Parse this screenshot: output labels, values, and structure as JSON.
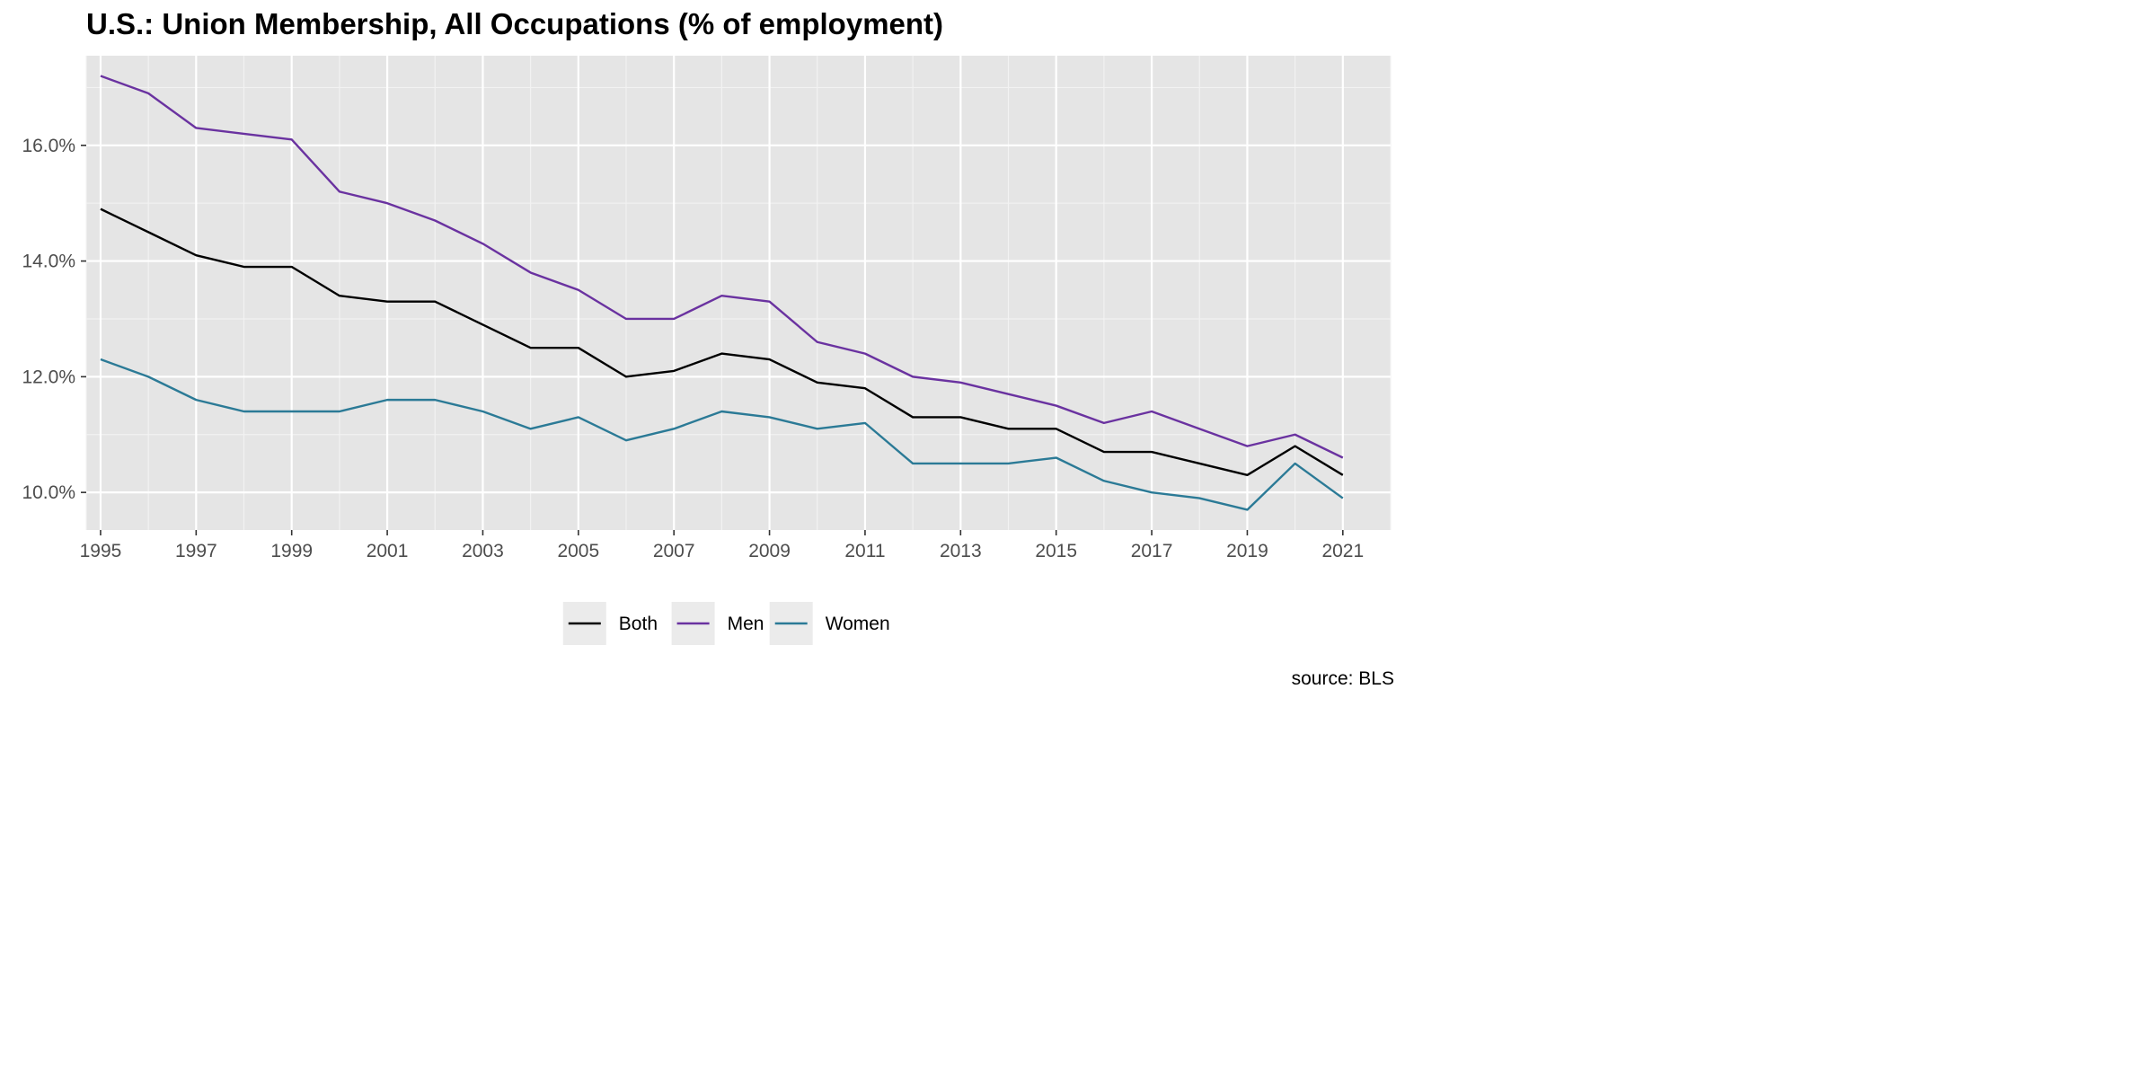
{
  "chart_data": {
    "type": "line",
    "title": "U.S.: Union Membership, All Occupations (% of employment)",
    "caption": "source: BLS",
    "xlabel": "",
    "ylabel": "",
    "x": [
      1995,
      1996,
      1997,
      1998,
      1999,
      2000,
      2001,
      2002,
      2003,
      2004,
      2005,
      2006,
      2007,
      2008,
      2009,
      2010,
      2011,
      2012,
      2013,
      2014,
      2015,
      2016,
      2017,
      2018,
      2019,
      2020,
      2021
    ],
    "x_ticks": [
      "1995",
      "1997",
      "1999",
      "2001",
      "2003",
      "2005",
      "2007",
      "2009",
      "2011",
      "2013",
      "2015",
      "2017",
      "2019",
      "2021"
    ],
    "y_ticks": [
      "10.0%",
      "12.0%",
      "14.0%",
      "16.0%"
    ],
    "y_tick_values": [
      10,
      12,
      14,
      16
    ],
    "xlim": [
      1994.7,
      2022.0
    ],
    "ylim": [
      9.35,
      17.55
    ],
    "grid": true,
    "legend_position": "bottom",
    "series": [
      {
        "name": "Both",
        "color": "#000000",
        "values": [
          14.9,
          14.5,
          14.1,
          13.9,
          13.9,
          13.4,
          13.3,
          13.3,
          12.9,
          12.5,
          12.5,
          12.0,
          12.1,
          12.4,
          12.3,
          11.9,
          11.8,
          11.3,
          11.3,
          11.1,
          11.1,
          10.7,
          10.7,
          10.5,
          10.3,
          10.8,
          10.3
        ]
      },
      {
        "name": "Men",
        "color": "#6a32a0",
        "values": [
          17.2,
          16.9,
          16.3,
          16.2,
          16.1,
          15.2,
          15.0,
          14.7,
          14.3,
          13.8,
          13.5,
          13.0,
          13.0,
          13.4,
          13.3,
          12.6,
          12.4,
          12.0,
          11.9,
          11.7,
          11.5,
          11.2,
          11.4,
          11.1,
          10.8,
          11.0,
          10.6
        ]
      },
      {
        "name": "Women",
        "color": "#2b7a96",
        "values": [
          12.3,
          12.0,
          11.6,
          11.4,
          11.4,
          11.4,
          11.6,
          11.6,
          11.4,
          11.1,
          11.3,
          10.9,
          11.1,
          11.4,
          11.3,
          11.1,
          11.2,
          10.5,
          10.5,
          10.5,
          10.6,
          10.2,
          10.0,
          9.9,
          9.7,
          10.5,
          9.9
        ]
      }
    ]
  }
}
